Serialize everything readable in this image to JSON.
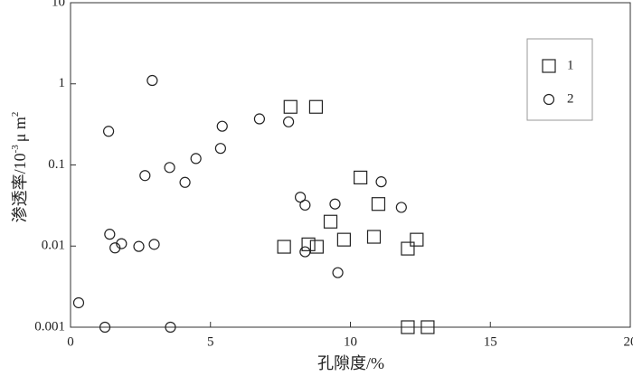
{
  "chart_data": {
    "type": "scatter",
    "x_label": "孔隙度/%",
    "y_label": {
      "text": "渗透率/10",
      "exp": "-3",
      "unit": "μ m",
      "unit_exp": "2"
    },
    "xlim": [
      0,
      20
    ],
    "xticks": [
      0,
      5,
      10,
      15,
      20
    ],
    "ylim": [
      0.001,
      10
    ],
    "yticks": [
      0.001,
      0.01,
      0.1,
      1,
      10
    ],
    "log_y": true,
    "legend": "upper right",
    "series": [
      {
        "name": "1",
        "marker": "square",
        "color": "#222222",
        "x": [
          7.86,
          8.77,
          7.63,
          8.5,
          8.8,
          9.29,
          9.77,
          10.36,
          10.84,
          11.0,
          12.05,
          12.37,
          12.05,
          12.76
        ],
        "values": [
          0.52,
          0.52,
          0.0098,
          0.0105,
          0.0098,
          0.02,
          0.012,
          0.07,
          0.013,
          0.033,
          0.0093,
          0.012,
          0.001,
          0.001
        ]
      },
      {
        "name": "2",
        "marker": "circle",
        "color": "#222222",
        "x": [
          0.29,
          1.23,
          1.36,
          1.4,
          1.59,
          1.82,
          2.44,
          2.66,
          2.92,
          2.99,
          3.54,
          3.57,
          4.09,
          4.48,
          5.36,
          5.42,
          6.75,
          7.79,
          8.21,
          8.38,
          8.38,
          9.45,
          9.55,
          11.1,
          11.82
        ],
        "values": [
          0.002,
          0.001,
          0.26,
          0.014,
          0.0095,
          0.0107,
          0.0099,
          0.074,
          1.1,
          0.0105,
          0.093,
          0.001,
          0.061,
          0.12,
          0.16,
          0.3,
          0.37,
          0.34,
          0.04,
          0.032,
          0.0085,
          0.033,
          0.0047,
          0.062,
          0.03
        ]
      }
    ]
  }
}
